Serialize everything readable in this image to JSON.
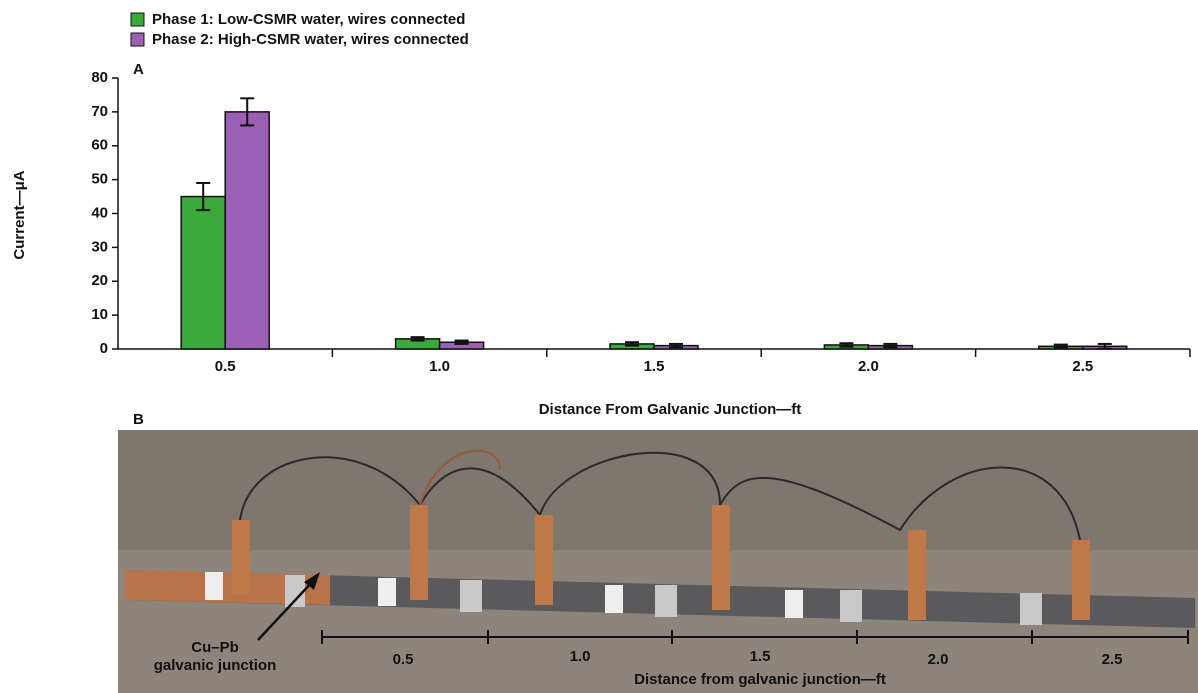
{
  "chart_data": {
    "type": "bar",
    "panel_label": "A",
    "y_label": "Current—μA",
    "x_label": "Distance From Galvanic Junction—ft",
    "categories": [
      "0.5",
      "1.0",
      "1.5",
      "2.0",
      "2.5"
    ],
    "series": [
      {
        "name": "Phase 1: Low-CSMR water, wires connected",
        "color": "#3aa83a",
        "values": [
          45,
          3,
          1.5,
          1.2,
          0.8
        ],
        "errors": [
          4,
          0.5,
          0.5,
          0.5,
          0.5
        ]
      },
      {
        "name": "Phase 2: High-CSMR water, wires connected",
        "color": "#9b5fb5",
        "values": [
          70,
          2,
          1,
          1,
          0.8
        ],
        "errors": [
          4,
          0.5,
          0.5,
          0.5,
          0.7
        ]
      }
    ],
    "ylim": [
      0,
      80
    ],
    "yticks": [
      0,
      10,
      20,
      30,
      40,
      50,
      60,
      70,
      80
    ],
    "grid": false
  },
  "photo": {
    "panel_label": "B",
    "annotation": [
      "Cu–Pb",
      "galvanic junction"
    ],
    "scale_labels": [
      "0.5",
      "1.0",
      "1.5",
      "2.0",
      "2.5"
    ],
    "axis_label": "Distance from galvanic junction—ft"
  }
}
